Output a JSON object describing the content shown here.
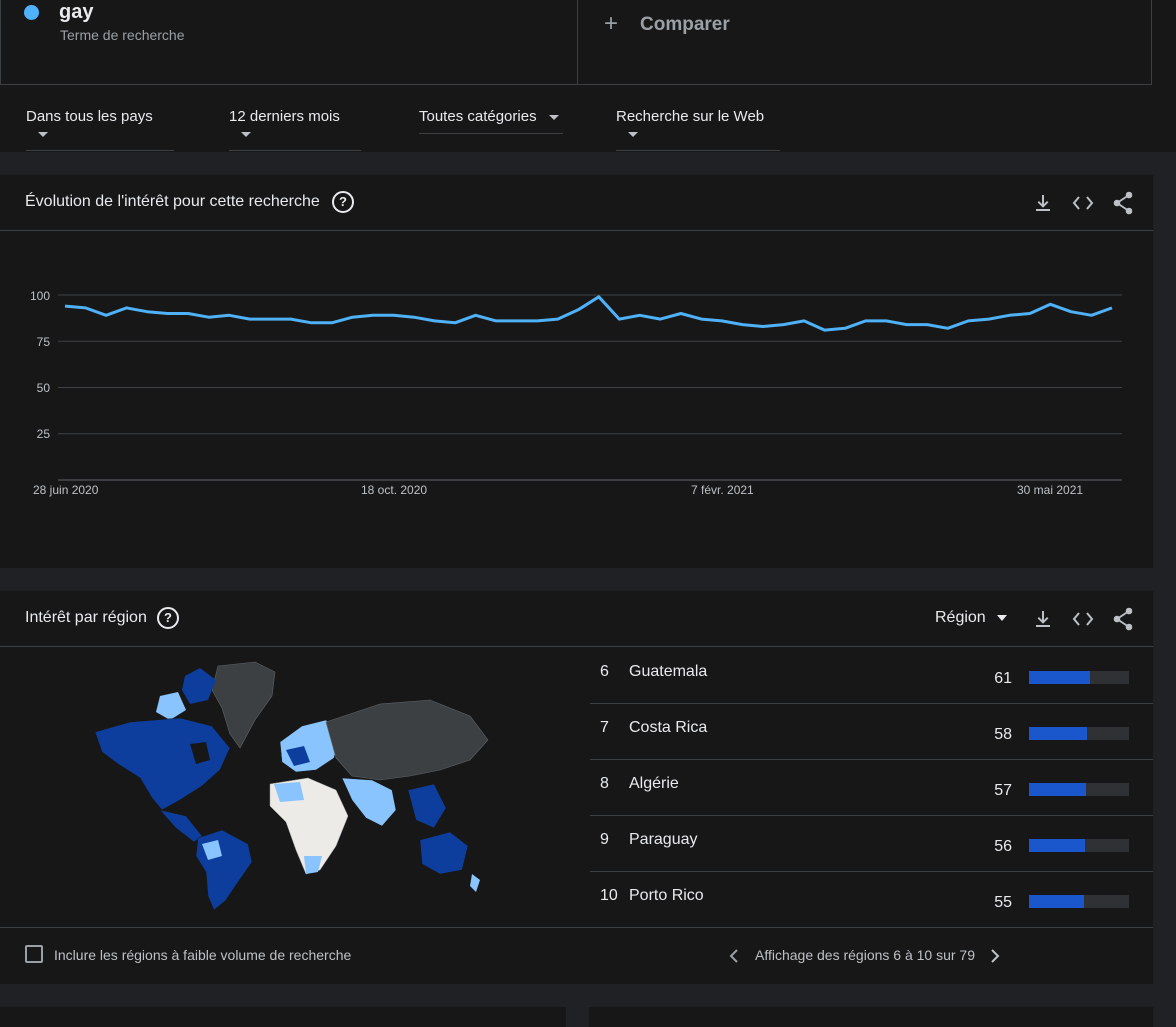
{
  "term": {
    "name": "gay",
    "type": "Terme de recherche",
    "color": "#4fb1f7"
  },
  "compare": {
    "label": "Comparer",
    "icon": "plus-icon"
  },
  "filters": [
    {
      "label": "Dans tous les pays"
    },
    {
      "label": "12 derniers mois"
    },
    {
      "label": "Toutes catégories"
    },
    {
      "label": "Recherche sur le Web"
    }
  ],
  "interest_over_time": {
    "title": "Évolution de l'intérêt pour cette recherche",
    "help_icon": "help-icon",
    "tools": [
      "download-icon",
      "embed-icon",
      "share-icon"
    ]
  },
  "chart_data": {
    "type": "line",
    "x_tick_labels": [
      "28 juin 2020",
      "18 oct. 2020",
      "7 févr. 2021",
      "30 mai 2021"
    ],
    "y_tick_labels": [
      "100",
      "75",
      "50",
      "25"
    ],
    "ylim": [
      0,
      100
    ],
    "grid": true,
    "series": [
      {
        "color": "#4fb1f7",
        "values": [
          94,
          93,
          89,
          93,
          91,
          90,
          90,
          88,
          89,
          87,
          87,
          87,
          85,
          85,
          88,
          89,
          89,
          88,
          86,
          85,
          89,
          86,
          86,
          86,
          87,
          92,
          99,
          87,
          89,
          87,
          90,
          87,
          86,
          84,
          83,
          84,
          86,
          81,
          82,
          86,
          86,
          84,
          84,
          82,
          86,
          87,
          89,
          90,
          95,
          91,
          89,
          93
        ]
      }
    ]
  },
  "interest_by_region": {
    "title": "Intérêt par région",
    "help_icon": "help-icon",
    "dropdown_label": "Région",
    "tools": [
      "download-icon",
      "embed-icon",
      "share-icon"
    ],
    "rows": [
      {
        "rank": "6",
        "name": "Guatemala",
        "value": "61",
        "fraction": 0.61
      },
      {
        "rank": "7",
        "name": "Costa Rica",
        "value": "58",
        "fraction": 0.58
      },
      {
        "rank": "8",
        "name": "Algérie",
        "value": "57",
        "fraction": 0.57
      },
      {
        "rank": "9",
        "name": "Paraguay",
        "value": "56",
        "fraction": 0.56
      },
      {
        "rank": "10",
        "name": "Porto Rico",
        "value": "55",
        "fraction": 0.55
      }
    ],
    "low_volume_label": "Inclure les régions à faible volume de recherche",
    "pagination_label": "Affichage des régions 6 à 10 sur 79",
    "map_colors": {
      "dark": "#0d3e9e",
      "light": "#8ac4ff",
      "none": "#ecebe7",
      "other": "#3c4043"
    }
  }
}
